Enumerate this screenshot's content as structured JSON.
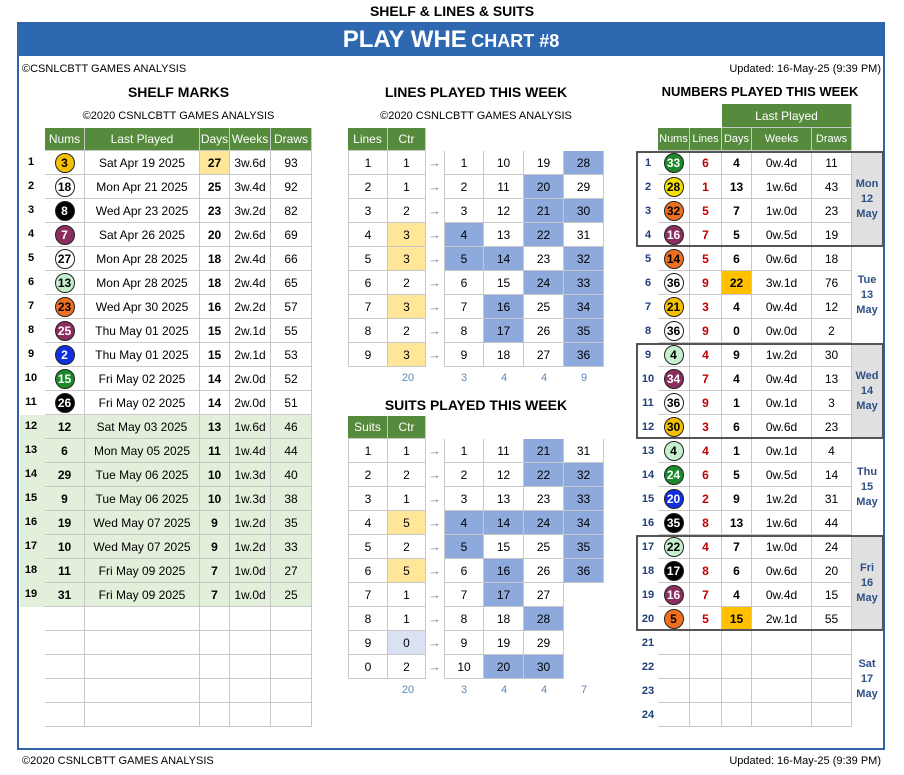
{
  "page": {
    "top_title": "SHELF & LINES & SUITS",
    "title": "PLAY WHE",
    "subtitle": "CHART #8",
    "copyright": "©CSNLCBTT GAMES ANALYSIS",
    "updated": "Updated: 16-May-25 (9:39 PM)",
    "footer_left": "©2020 CSNLCBTT GAMES ANALYSIS",
    "footer_right": "Updated: 16-May-25 (9:39 PM)"
  },
  "shelf": {
    "title": "SHELF MARKS",
    "sub": "©2020 CSNLCBTT GAMES ANALYSIS",
    "headers": [
      "Nums",
      "Last Played",
      "Days",
      "Weeks",
      "Draws"
    ],
    "rows": [
      {
        "n": 1,
        "num": "3",
        "last": "Sat Apr 19 2025",
        "days": "27",
        "weeks": "3w.6d",
        "draws": "93",
        "ball": "#f5c000",
        "fg": "#000"
      },
      {
        "n": 2,
        "num": "18",
        "last": "Mon Apr 21 2025",
        "days": "25",
        "weeks": "3w.4d",
        "draws": "92",
        "ball": "#fff",
        "fg": "#000"
      },
      {
        "n": 3,
        "num": "8",
        "last": "Wed Apr 23 2025",
        "days": "23",
        "weeks": "3w.2d",
        "draws": "82",
        "ball": "#000",
        "fg": "#fff"
      },
      {
        "n": 4,
        "num": "7",
        "last": "Sat Apr 26 2025",
        "days": "20",
        "weeks": "2w.6d",
        "draws": "69",
        "ball": "#8b2e5e",
        "fg": "#fff"
      },
      {
        "n": 5,
        "num": "27",
        "last": "Mon Apr 28 2025",
        "days": "18",
        "weeks": "2w.4d",
        "draws": "66",
        "ball": "#fff",
        "fg": "#000"
      },
      {
        "n": 6,
        "num": "13",
        "last": "Mon Apr 28 2025",
        "days": "18",
        "weeks": "2w.4d",
        "draws": "65",
        "ball": "#c6efce",
        "fg": "#000"
      },
      {
        "n": 7,
        "num": "23",
        "last": "Wed Apr 30 2025",
        "days": "16",
        "weeks": "2w.2d",
        "draws": "57",
        "ball": "#f07020",
        "fg": "#000"
      },
      {
        "n": 8,
        "num": "25",
        "last": "Thu May 01 2025",
        "days": "15",
        "weeks": "2w.1d",
        "draws": "55",
        "ball": "#8b2e5e",
        "fg": "#fff"
      },
      {
        "n": 9,
        "num": "2",
        "last": "Thu May 01 2025",
        "days": "15",
        "weeks": "2w.1d",
        "draws": "53",
        "ball": "#1030e0",
        "fg": "#fff"
      },
      {
        "n": 10,
        "num": "15",
        "last": "Fri May 02 2025",
        "days": "14",
        "weeks": "2w.0d",
        "draws": "52",
        "ball": "#1a8a2a",
        "fg": "#fff"
      },
      {
        "n": 11,
        "num": "26",
        "last": "Fri May 02 2025",
        "days": "14",
        "weeks": "2w.0d",
        "draws": "51",
        "ball": "#000",
        "fg": "#fff"
      },
      {
        "n": 12,
        "num": "12",
        "last": "Sat May 03 2025",
        "days": "13",
        "weeks": "1w.6d",
        "draws": "46"
      },
      {
        "n": 13,
        "num": "6",
        "last": "Mon May 05 2025",
        "days": "11",
        "weeks": "1w.4d",
        "draws": "44"
      },
      {
        "n": 14,
        "num": "29",
        "last": "Tue May 06 2025",
        "days": "10",
        "weeks": "1w.3d",
        "draws": "40"
      },
      {
        "n": 15,
        "num": "9",
        "last": "Tue May 06 2025",
        "days": "10",
        "weeks": "1w.3d",
        "draws": "38"
      },
      {
        "n": 16,
        "num": "19",
        "last": "Wed May 07 2025",
        "days": "9",
        "weeks": "1w.2d",
        "draws": "35"
      },
      {
        "n": 17,
        "num": "10",
        "last": "Wed May 07 2025",
        "days": "9",
        "weeks": "1w.2d",
        "draws": "33"
      },
      {
        "n": 18,
        "num": "11",
        "last": "Fri May 09 2025",
        "days": "7",
        "weeks": "1w.0d",
        "draws": "27"
      },
      {
        "n": 19,
        "num": "31",
        "last": "Fri May 09 2025",
        "days": "7",
        "weeks": "1w.0d",
        "draws": "25"
      }
    ]
  },
  "lines": {
    "title": "LINES PLAYED THIS WEEK",
    "sub": "©2020 CSNLCBTT GAMES ANALYSIS",
    "headers": [
      "Lines",
      "Ctr"
    ],
    "rows": [
      {
        "k": "1",
        "c": "1",
        "v": [
          "1",
          "10",
          "19",
          "28"
        ],
        "hl": [
          0,
          0,
          0,
          1
        ]
      },
      {
        "k": "2",
        "c": "1",
        "v": [
          "2",
          "11",
          "20",
          "29"
        ],
        "hl": [
          0,
          0,
          1,
          0
        ]
      },
      {
        "k": "3",
        "c": "2",
        "v": [
          "3",
          "12",
          "21",
          "30"
        ],
        "hl": [
          0,
          0,
          1,
          1
        ]
      },
      {
        "k": "4",
        "c": "3",
        "v": [
          "4",
          "13",
          "22",
          "31"
        ],
        "hl": [
          1,
          0,
          1,
          0
        ]
      },
      {
        "k": "5",
        "c": "3",
        "v": [
          "5",
          "14",
          "23",
          "32"
        ],
        "hl": [
          1,
          1,
          0,
          1
        ]
      },
      {
        "k": "6",
        "c": "2",
        "v": [
          "6",
          "15",
          "24",
          "33"
        ],
        "hl": [
          0,
          0,
          1,
          1
        ]
      },
      {
        "k": "7",
        "c": "3",
        "v": [
          "7",
          "16",
          "25",
          "34"
        ],
        "hl": [
          0,
          1,
          0,
          1
        ]
      },
      {
        "k": "8",
        "c": "2",
        "v": [
          "8",
          "17",
          "26",
          "35"
        ],
        "hl": [
          0,
          1,
          0,
          1
        ]
      },
      {
        "k": "9",
        "c": "3",
        "v": [
          "9",
          "18",
          "27",
          "36"
        ],
        "hl": [
          0,
          0,
          0,
          1
        ]
      }
    ],
    "foot": [
      "20",
      "3",
      "4",
      "4",
      "9"
    ]
  },
  "suits": {
    "title": "SUITS PLAYED THIS WEEK",
    "headers": [
      "Suits",
      "Ctr"
    ],
    "rows": [
      {
        "k": "1",
        "c": "1",
        "v": [
          "1",
          "11",
          "21",
          "31"
        ],
        "hl": [
          0,
          0,
          1,
          0
        ]
      },
      {
        "k": "2",
        "c": "2",
        "v": [
          "2",
          "12",
          "22",
          "32"
        ],
        "hl": [
          0,
          0,
          1,
          1
        ]
      },
      {
        "k": "3",
        "c": "1",
        "v": [
          "3",
          "13",
          "23",
          "33"
        ],
        "hl": [
          0,
          0,
          0,
          1
        ]
      },
      {
        "k": "4",
        "c": "5",
        "v": [
          "4",
          "14",
          "24",
          "34"
        ],
        "hl": [
          1,
          1,
          1,
          1
        ]
      },
      {
        "k": "5",
        "c": "2",
        "v": [
          "5",
          "15",
          "25",
          "35"
        ],
        "hl": [
          1,
          0,
          0,
          1
        ]
      },
      {
        "k": "6",
        "c": "5",
        "v": [
          "6",
          "16",
          "26",
          "36"
        ],
        "hl": [
          0,
          1,
          0,
          1
        ]
      },
      {
        "k": "7",
        "c": "1",
        "v": [
          "7",
          "17",
          "27",
          ""
        ],
        "hl": [
          0,
          1,
          0,
          0
        ]
      },
      {
        "k": "8",
        "c": "1",
        "v": [
          "8",
          "18",
          "28",
          ""
        ],
        "hl": [
          0,
          0,
          1,
          0
        ]
      },
      {
        "k": "9",
        "c": "0",
        "v": [
          "9",
          "19",
          "29",
          ""
        ],
        "hl": [
          0,
          0,
          0,
          0
        ]
      },
      {
        "k": "0",
        "c": "2",
        "v": [
          "10",
          "20",
          "30",
          ""
        ],
        "hl": [
          0,
          1,
          1,
          0
        ]
      }
    ],
    "foot": [
      "20",
      "3",
      "4",
      "4",
      "7"
    ]
  },
  "numbers": {
    "title": "NUMBERS PLAYED THIS WEEK",
    "group": "Last Played",
    "headers": [
      "Nums",
      "Lines",
      "Days",
      "Weeks",
      "Draws"
    ],
    "rows": [
      {
        "n": "1",
        "num": "33",
        "line": "6",
        "days": "4",
        "weeks": "0w.4d",
        "draws": "11",
        "ball": "#1a8a2a",
        "fg": "#fff"
      },
      {
        "n": "2",
        "num": "28",
        "line": "1",
        "days": "13",
        "weeks": "1w.6d",
        "draws": "43",
        "ball": "#f5e000",
        "fg": "#000"
      },
      {
        "n": "3",
        "num": "32",
        "line": "5",
        "days": "7",
        "weeks": "1w.0d",
        "draws": "23",
        "ball": "#f07020",
        "fg": "#000"
      },
      {
        "n": "4",
        "num": "16",
        "line": "7",
        "days": "5",
        "weeks": "0w.5d",
        "draws": "19",
        "ball": "#8b2e5e",
        "fg": "#fff"
      },
      {
        "n": "5",
        "num": "14",
        "line": "5",
        "days": "6",
        "weeks": "0w.6d",
        "draws": "18",
        "ball": "#f07020",
        "fg": "#000"
      },
      {
        "n": "6",
        "num": "36",
        "line": "9",
        "days": "22",
        "weeks": "3w.1d",
        "draws": "76",
        "ball": "#fff",
        "fg": "#000",
        "hl": 1
      },
      {
        "n": "7",
        "num": "21",
        "line": "3",
        "days": "4",
        "weeks": "0w.4d",
        "draws": "12",
        "ball": "#f5c000",
        "fg": "#000"
      },
      {
        "n": "8",
        "num": "36",
        "line": "9",
        "days": "0",
        "weeks": "0w.0d",
        "draws": "2",
        "ball": "#fff",
        "fg": "#000"
      },
      {
        "n": "9",
        "num": "4",
        "line": "4",
        "days": "9",
        "weeks": "1w.2d",
        "draws": "30",
        "ball": "#c6efce",
        "fg": "#000"
      },
      {
        "n": "10",
        "num": "34",
        "line": "7",
        "days": "4",
        "weeks": "0w.4d",
        "draws": "13",
        "ball": "#8b2e5e",
        "fg": "#fff"
      },
      {
        "n": "11",
        "num": "36",
        "line": "9",
        "days": "1",
        "weeks": "0w.1d",
        "draws": "3",
        "ball": "#fff",
        "fg": "#000"
      },
      {
        "n": "12",
        "num": "30",
        "line": "3",
        "days": "6",
        "weeks": "0w.6d",
        "draws": "23",
        "ball": "#f5c000",
        "fg": "#000"
      },
      {
        "n": "13",
        "num": "4",
        "line": "4",
        "days": "1",
        "weeks": "0w.1d",
        "draws": "4",
        "ball": "#c6efce",
        "fg": "#000"
      },
      {
        "n": "14",
        "num": "24",
        "line": "6",
        "days": "5",
        "weeks": "0w.5d",
        "draws": "14",
        "ball": "#1a8a2a",
        "fg": "#fff"
      },
      {
        "n": "15",
        "num": "20",
        "line": "2",
        "days": "9",
        "weeks": "1w.2d",
        "draws": "31",
        "ball": "#1030e0",
        "fg": "#fff"
      },
      {
        "n": "16",
        "num": "35",
        "line": "8",
        "days": "13",
        "weeks": "1w.6d",
        "draws": "44",
        "ball": "#000",
        "fg": "#fff"
      },
      {
        "n": "17",
        "num": "22",
        "line": "4",
        "days": "7",
        "weeks": "1w.0d",
        "draws": "24",
        "ball": "#c6efce",
        "fg": "#000"
      },
      {
        "n": "18",
        "num": "17",
        "line": "8",
        "days": "6",
        "weeks": "0w.6d",
        "draws": "20",
        "ball": "#000",
        "fg": "#fff"
      },
      {
        "n": "19",
        "num": "16",
        "line": "7",
        "days": "4",
        "weeks": "0w.4d",
        "draws": "15",
        "ball": "#8b2e5e",
        "fg": "#fff"
      },
      {
        "n": "20",
        "num": "5",
        "line": "5",
        "days": "15",
        "weeks": "2w.1d",
        "draws": "55",
        "ball": "#f07020",
        "fg": "#000",
        "hl": 1
      },
      {
        "n": "21",
        "num": "",
        "line": "",
        "days": "",
        "weeks": "",
        "draws": ""
      },
      {
        "n": "22",
        "num": "",
        "line": "",
        "days": "",
        "weeks": "",
        "draws": ""
      },
      {
        "n": "23",
        "num": "",
        "line": "",
        "days": "",
        "weeks": "",
        "draws": ""
      },
      {
        "n": "24",
        "num": "",
        "line": "",
        "days": "",
        "weeks": "",
        "draws": ""
      }
    ],
    "days": [
      [
        "Mon",
        "12",
        "May"
      ],
      [
        "Tue",
        "13",
        "May"
      ],
      [
        "Wed",
        "14",
        "May"
      ],
      [
        "Thu",
        "15",
        "May"
      ],
      [
        "Fri",
        "16",
        "May"
      ],
      [
        "Sat",
        "17",
        "May"
      ]
    ]
  }
}
